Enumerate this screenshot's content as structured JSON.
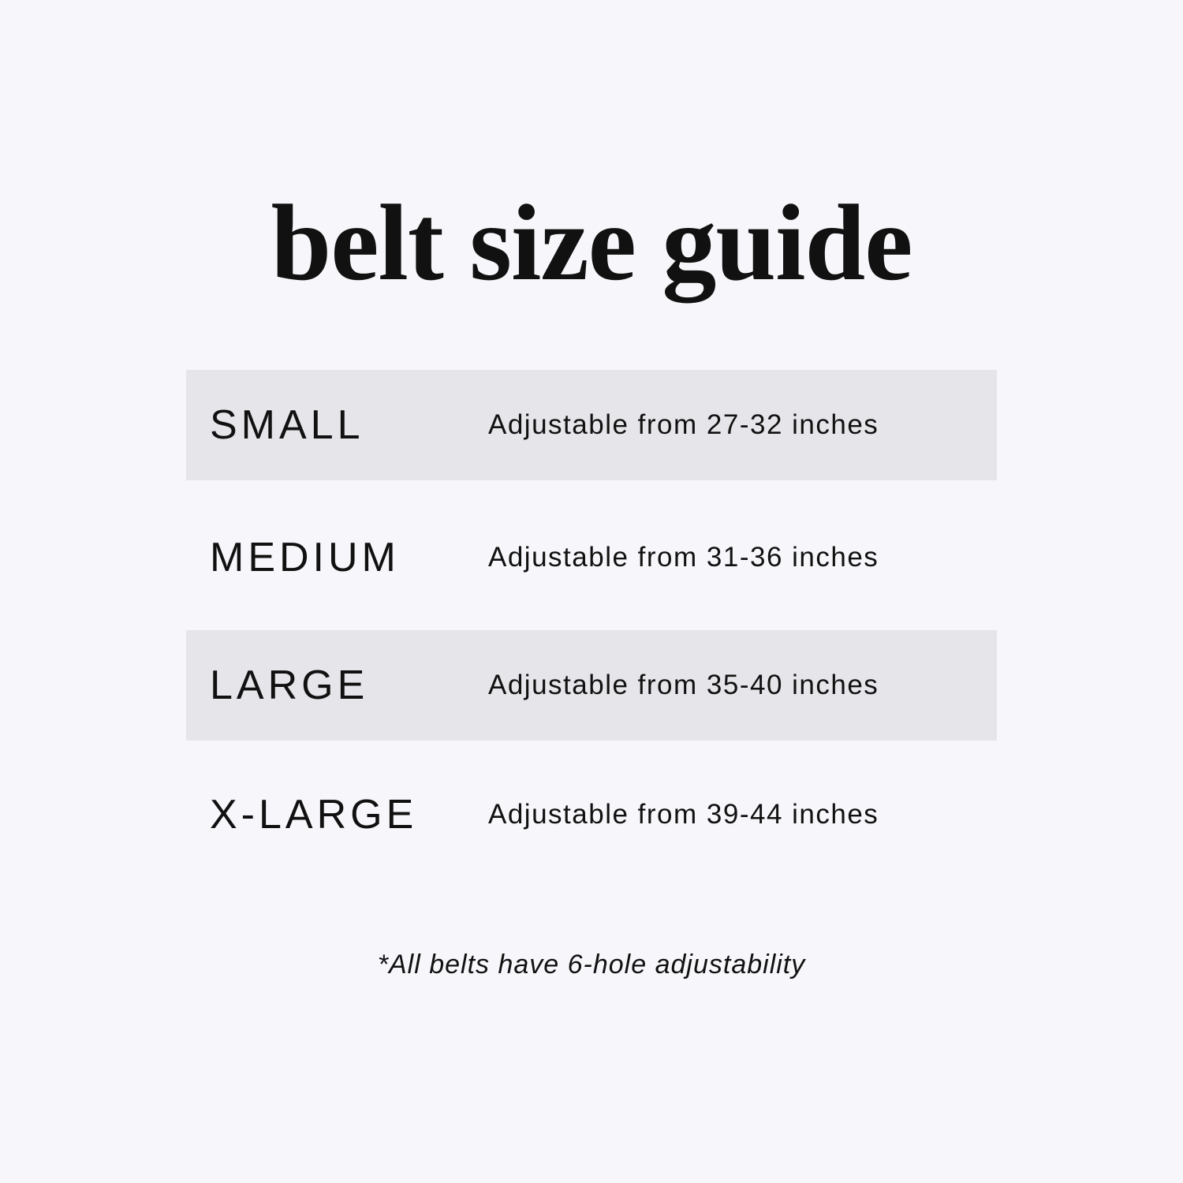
{
  "title": "belt size guide",
  "colors": {
    "background": "#f7f7fb",
    "band": "#e6e5ea",
    "text": "#111111"
  },
  "rows": [
    {
      "size": "SMALL",
      "description": "Adjustable from 27-32 inches",
      "banded": true
    },
    {
      "size": "MEDIUM",
      "description": "Adjustable from 31-36 inches",
      "banded": false
    },
    {
      "size": "LARGE",
      "description": "Adjustable from 35-40 inches",
      "banded": true
    },
    {
      "size": "X-LARGE",
      "description": "Adjustable from 39-44 inches",
      "banded": false
    }
  ],
  "footnote": "*All belts have 6-hole adjustability"
}
